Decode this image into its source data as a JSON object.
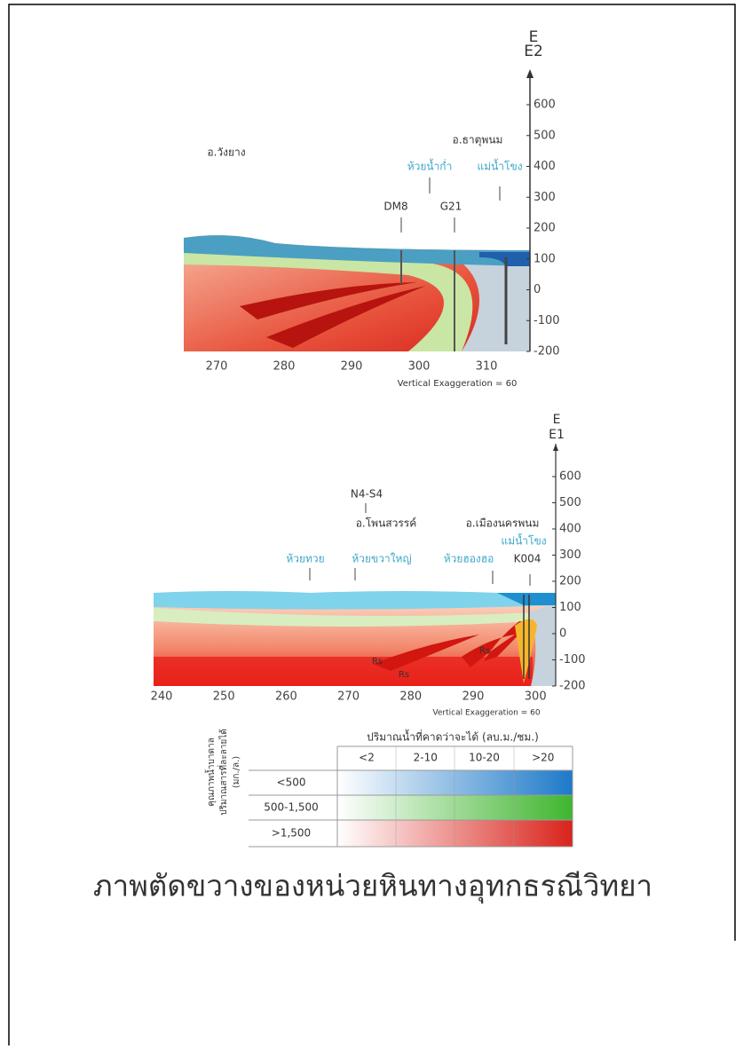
{
  "section_e2": {
    "direction": "E",
    "end_label": "E2",
    "depth_ticks": [
      "600",
      "500",
      "400",
      "300",
      "200",
      "100",
      "0",
      "-100",
      "-200"
    ],
    "distance_ticks": [
      "270",
      "280",
      "290",
      "300",
      "310"
    ],
    "district_west": "อ.วังยาง",
    "district_east": "อ.ธาตุพนม",
    "stream": "ห้วยน้ำก่ำ",
    "river": "แม่น้ำโขง",
    "well_1": "DM8",
    "well_2": "G21",
    "note": "Vertical Exaggeration = 60"
  },
  "section_e1": {
    "direction": "E",
    "end_label": "E1",
    "depth_ticks": [
      "600",
      "500",
      "400",
      "300",
      "200",
      "100",
      "0",
      "-100",
      "-200"
    ],
    "distance_ticks": [
      "240",
      "250",
      "260",
      "270",
      "280",
      "290",
      "300"
    ],
    "line_label": "N4-S4",
    "district_west": "อ.โพนสวรรค์",
    "district_east": "อ.เมืองนครพนม",
    "river": "แม่น้ำโขง",
    "well": "K004",
    "stream_1": "ห้วยทวย",
    "stream_2": "ห้วยขวาใหญ่",
    "stream_3": "ห้วยฮองฮอ",
    "rock_labels": [
      "Rs",
      "Rs",
      "Rs"
    ],
    "note": "Vertical Exaggeration = 60"
  },
  "legend": {
    "column_title": "ปริมาณน้ำที่คาดว่าจะได้ (ลบ.ม./ชม.)",
    "columns": [
      "<2",
      "2-10",
      "10-20",
      ">20"
    ],
    "row_title_1": "คุณภาพน้ำบาดาล",
    "row_title_2": "ปริมาณสารที่ละลายได้",
    "row_title_3": "(มก./ล.)",
    "rows": [
      "<500",
      "500-1,500",
      ">1,500"
    ]
  },
  "caption": "ภาพตัดขวางของหน่วยหินทางอุทกธรณีวิทยา"
}
